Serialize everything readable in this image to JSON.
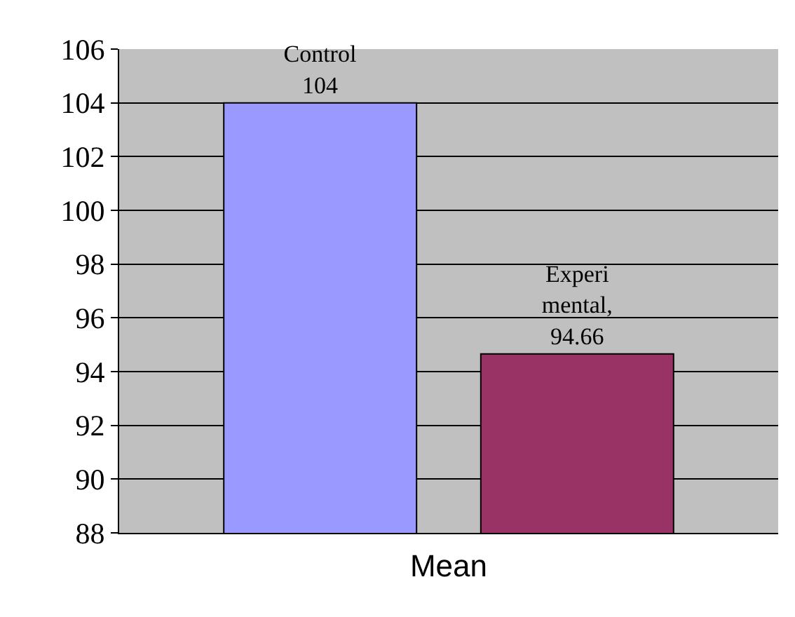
{
  "chart_data": {
    "type": "bar",
    "categories": [
      null
    ],
    "xlabel": "Mean",
    "ylim": [
      88,
      106
    ],
    "yticks": [
      88,
      90,
      92,
      94,
      96,
      98,
      100,
      102,
      104,
      106
    ],
    "grid": "y",
    "legend": false,
    "tick_labels": "y",
    "series": [
      {
        "color": "#9999ff",
        "values": [
          104
        ],
        "value_labels": [
          "Control 104"
        ]
      },
      {
        "color": "#993366",
        "values": [
          94.66
        ],
        "value_labels": [
          "Experi mental, 94.66"
        ]
      }
    ]
  }
}
